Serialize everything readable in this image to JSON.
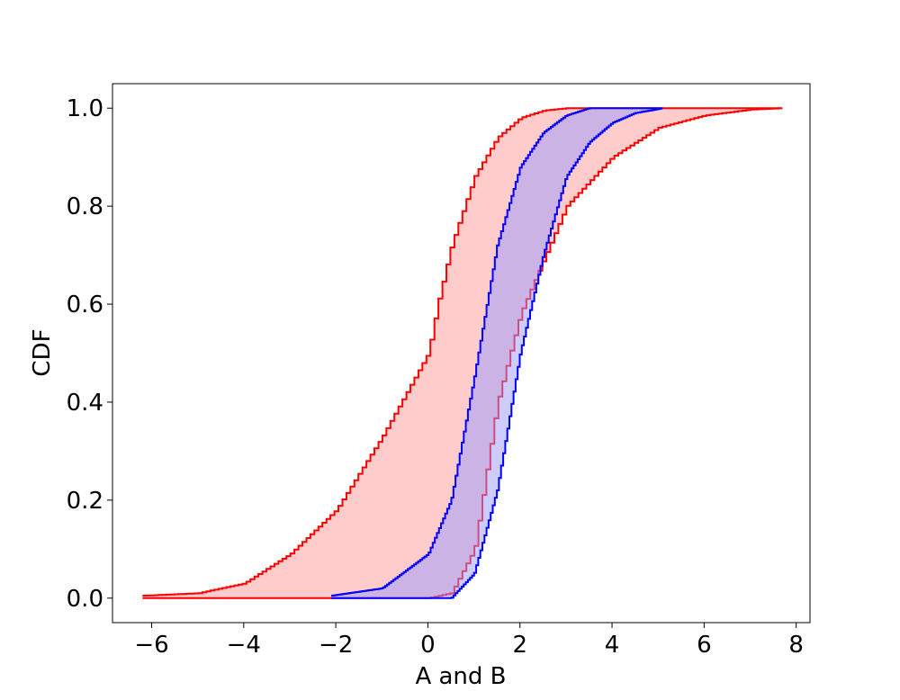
{
  "chart_data": {
    "type": "area",
    "xlabel": "A and B",
    "ylabel": "CDF",
    "xlim": [
      -6.85,
      8.3
    ],
    "ylim": [
      -0.05,
      1.05
    ],
    "xticks": [
      -6,
      -4,
      -2,
      0,
      2,
      4,
      6,
      8
    ],
    "yticks": [
      0.0,
      0.2,
      0.4,
      0.6,
      0.8,
      1.0
    ],
    "xtick_labels": [
      "−6",
      "−4",
      "−2",
      "0",
      "2",
      "4",
      "6",
      "8"
    ],
    "ytick_labels": [
      "0.0",
      "0.2",
      "0.4",
      "0.6",
      "0.8",
      "1.0"
    ],
    "grid": false,
    "legend": "none",
    "bands": [
      {
        "color": "#ff0000",
        "fill": "#ffcccc",
        "upper": [
          [
            -6.2,
            0.005
          ],
          [
            -5.0,
            0.01
          ],
          [
            -4.0,
            0.03
          ],
          [
            -3.0,
            0.09
          ],
          [
            -2.0,
            0.18
          ],
          [
            -1.0,
            0.33
          ],
          [
            0.0,
            0.5
          ],
          [
            0.2,
            0.6
          ],
          [
            0.5,
            0.72
          ],
          [
            1.0,
            0.86
          ],
          [
            1.5,
            0.94
          ],
          [
            2.0,
            0.98
          ],
          [
            2.5,
            0.995
          ],
          [
            3.0,
            1.0
          ],
          [
            7.7,
            1.0
          ]
        ],
        "lower": [
          [
            -6.2,
            0.0
          ],
          [
            0.0,
            0.0
          ],
          [
            0.5,
            0.01
          ],
          [
            1.0,
            0.1
          ],
          [
            1.5,
            0.4
          ],
          [
            2.0,
            0.58
          ],
          [
            3.0,
            0.8
          ],
          [
            4.0,
            0.9
          ],
          [
            5.0,
            0.96
          ],
          [
            6.0,
            0.985
          ],
          [
            7.0,
            0.997
          ],
          [
            7.7,
            1.0
          ]
        ]
      },
      {
        "color": "#0000ff",
        "fill": "#9999ff",
        "upper": [
          [
            -2.1,
            0.005
          ],
          [
            -1.0,
            0.02
          ],
          [
            0.0,
            0.09
          ],
          [
            0.5,
            0.2
          ],
          [
            1.0,
            0.45
          ],
          [
            1.5,
            0.72
          ],
          [
            2.0,
            0.88
          ],
          [
            2.5,
            0.95
          ],
          [
            3.0,
            0.985
          ],
          [
            3.5,
            1.0
          ],
          [
            5.1,
            1.0
          ]
        ],
        "lower": [
          [
            -2.1,
            0.0
          ],
          [
            0.5,
            0.0
          ],
          [
            1.0,
            0.05
          ],
          [
            1.5,
            0.22
          ],
          [
            2.0,
            0.5
          ],
          [
            2.5,
            0.7
          ],
          [
            3.0,
            0.86
          ],
          [
            3.5,
            0.93
          ],
          [
            4.0,
            0.97
          ],
          [
            4.5,
            0.99
          ],
          [
            5.1,
            1.0
          ]
        ]
      }
    ]
  }
}
